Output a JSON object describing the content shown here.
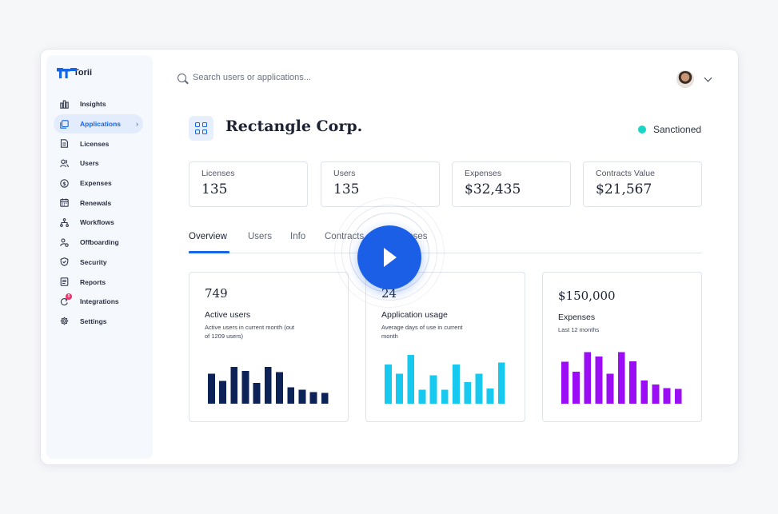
{
  "brand": {
    "name": "Torii"
  },
  "search": {
    "placeholder": "Search users or applications..."
  },
  "sidebar": {
    "items": [
      {
        "label": "Insights",
        "icon": "bar-chart-icon"
      },
      {
        "label": "Applications",
        "icon": "applications-icon",
        "active": true
      },
      {
        "label": "Licenses",
        "icon": "license-icon"
      },
      {
        "label": "Users",
        "icon": "users-icon"
      },
      {
        "label": "Expenses",
        "icon": "dollar-icon"
      },
      {
        "label": "Renewals",
        "icon": "calendar-icon"
      },
      {
        "label": "Workflows",
        "icon": "workflow-icon"
      },
      {
        "label": "Offboarding",
        "icon": "offboarding-icon"
      },
      {
        "label": "Security",
        "icon": "shield-icon"
      },
      {
        "label": "Reports",
        "icon": "report-icon"
      },
      {
        "label": "Integrations",
        "icon": "integrations-icon",
        "badge": "5"
      },
      {
        "label": "Settings",
        "icon": "gear-icon"
      }
    ]
  },
  "header": {
    "title": "Rectangle Corp.",
    "status": "Sanctioned",
    "status_color": "#19d5c6"
  },
  "stats": [
    {
      "label": "Licenses",
      "value": "135"
    },
    {
      "label": "Users",
      "value": "135"
    },
    {
      "label": "Expenses",
      "value": "$32,435"
    },
    {
      "label": "Contracts Value",
      "value": "$21,567"
    }
  ],
  "tabs": [
    "Overview",
    "Users",
    "Info",
    "Contracts",
    "Expenses"
  ],
  "cards": [
    {
      "value": "749",
      "title": "Active users",
      "subtitle": "Active users in current month (out of 1209 users)"
    },
    {
      "value": "24",
      "title": "Application usage",
      "subtitle": "Average days of use in current month"
    },
    {
      "value": "$150,000",
      "title": "Expenses",
      "subtitle": "Last 12 months"
    }
  ],
  "chart_data": [
    {
      "type": "bar",
      "color": "#0d2257",
      "values": [
        55,
        42,
        68,
        60,
        38,
        68,
        58,
        30,
        26,
        21,
        20
      ],
      "ylim": [
        0,
        100
      ]
    },
    {
      "type": "bar",
      "color": "#17c9ef",
      "values": [
        72,
        55,
        90,
        26,
        52,
        26,
        72,
        40,
        55,
        28,
        76
      ],
      "ylim": [
        0,
        100
      ]
    },
    {
      "type": "bar",
      "color": "#9b0ef5",
      "values": [
        77,
        59,
        95,
        87,
        55,
        95,
        78,
        43,
        35,
        29,
        27
      ],
      "ylim": [
        0,
        100
      ]
    }
  ]
}
